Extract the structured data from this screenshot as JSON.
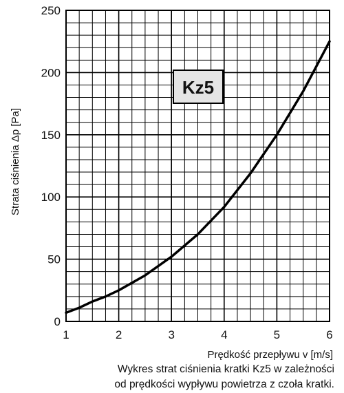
{
  "chart_data": {
    "type": "line",
    "legend_box": "Kz5",
    "xlabel": "Prędkość przepływu v [m/s]",
    "ylabel": "Strata ciśnienia Δp [Pa]",
    "xlim": [
      1,
      6
    ],
    "ylim": [
      0,
      250
    ],
    "x_ticks": [
      "1",
      "2",
      "3",
      "4",
      "5",
      "6"
    ],
    "y_ticks": [
      "0",
      "50",
      "100",
      "150",
      "200",
      "250"
    ],
    "grid": true,
    "series": [
      {
        "values_xy": [
          [
            1.0,
            7
          ],
          [
            1.25,
            11
          ],
          [
            1.5,
            16
          ],
          [
            1.75,
            20
          ],
          [
            2.0,
            25
          ],
          [
            2.5,
            37
          ],
          [
            3.0,
            52
          ],
          [
            3.5,
            70
          ],
          [
            4.0,
            92
          ],
          [
            4.5,
            119
          ],
          [
            5.0,
            150
          ],
          [
            5.5,
            185
          ],
          [
            6.0,
            225
          ]
        ]
      }
    ],
    "caption_lines": [
      "Wykres strat ciśnienia kratki Kz5 w zależności",
      "od prędkości wypływu powietrza z czoła kratki."
    ],
    "colors": {
      "grid": "#000000",
      "line": "#000000",
      "legend_fill": "#e5e5e5"
    }
  }
}
